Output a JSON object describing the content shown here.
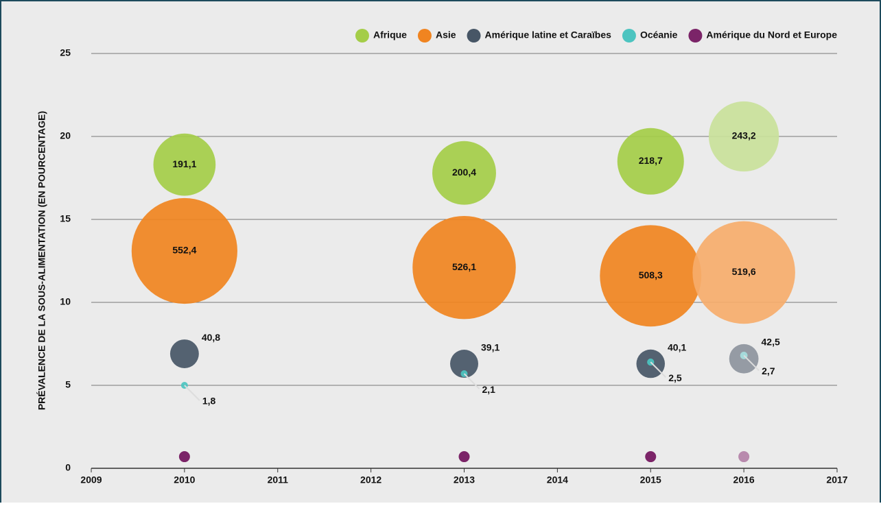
{
  "chart_data": {
    "type": "bubble",
    "ylabel": "PRÉVALENCE DE LA SOUS-ALIMENTATION (EN POURCENTAGE)",
    "x": [
      2010,
      2013,
      2015,
      2016
    ],
    "xlim": [
      2009,
      2017
    ],
    "xticks": [
      2009,
      2010,
      2011,
      2012,
      2013,
      2014,
      2015,
      2016,
      2017
    ],
    "ylim": [
      0,
      25
    ],
    "yticks": [
      0,
      5,
      10,
      15,
      20,
      25
    ],
    "grid": true,
    "legend": "top-right",
    "series": [
      {
        "name": "Afrique",
        "color": "#a4cd48",
        "colors": [
          "#a4cd48",
          "#a4cd48",
          "#a4cd48",
          "#c9e19a"
        ],
        "values": [
          18.3,
          17.8,
          18.5,
          20.0
        ],
        "sizes": [
          191.1,
          200.4,
          218.7,
          243.2
        ],
        "size_labels": [
          "191,1",
          "200,4",
          "218,7",
          "243,2"
        ]
      },
      {
        "name": "Asie",
        "color": "#f08420",
        "colors": [
          "#f08420",
          "#f08420",
          "#f08420",
          "#f6ad6b"
        ],
        "values": [
          13.1,
          12.1,
          11.6,
          11.8
        ],
        "sizes": [
          552.4,
          526.1,
          508.3,
          519.6
        ],
        "size_labels": [
          "552,4",
          "526,1",
          "508,3",
          "519,6"
        ]
      },
      {
        "name": "Amérique latine et Caraïbes",
        "color": "#475666",
        "colors": [
          "#475666",
          "#475666",
          "#475666",
          "#8d949d"
        ],
        "values": [
          6.9,
          6.3,
          6.3,
          6.6
        ],
        "sizes": [
          40.8,
          39.1,
          40.1,
          42.5
        ],
        "size_labels": [
          "40,8",
          "39,1",
          "40,1",
          "42,5"
        ]
      },
      {
        "name": "Océanie",
        "color": "#4cc4c0",
        "colors": [
          "#4cc4c0",
          "#4cc4c0",
          "#4cc4c0",
          "#a6e0de"
        ],
        "values": [
          5.0,
          5.7,
          6.4,
          6.8
        ],
        "sizes": [
          1.8,
          2.1,
          2.5,
          2.7
        ],
        "size_labels": [
          "1,8",
          "2,1",
          "2,5",
          "2,7"
        ]
      },
      {
        "name": "Amérique du Nord et Europe",
        "color": "#7b2468",
        "colors": [
          "#7b2468",
          "#7b2468",
          "#7b2468",
          "#b88aad"
        ],
        "values": [
          0.7,
          0.7,
          0.7,
          0.7
        ]
      }
    ]
  }
}
